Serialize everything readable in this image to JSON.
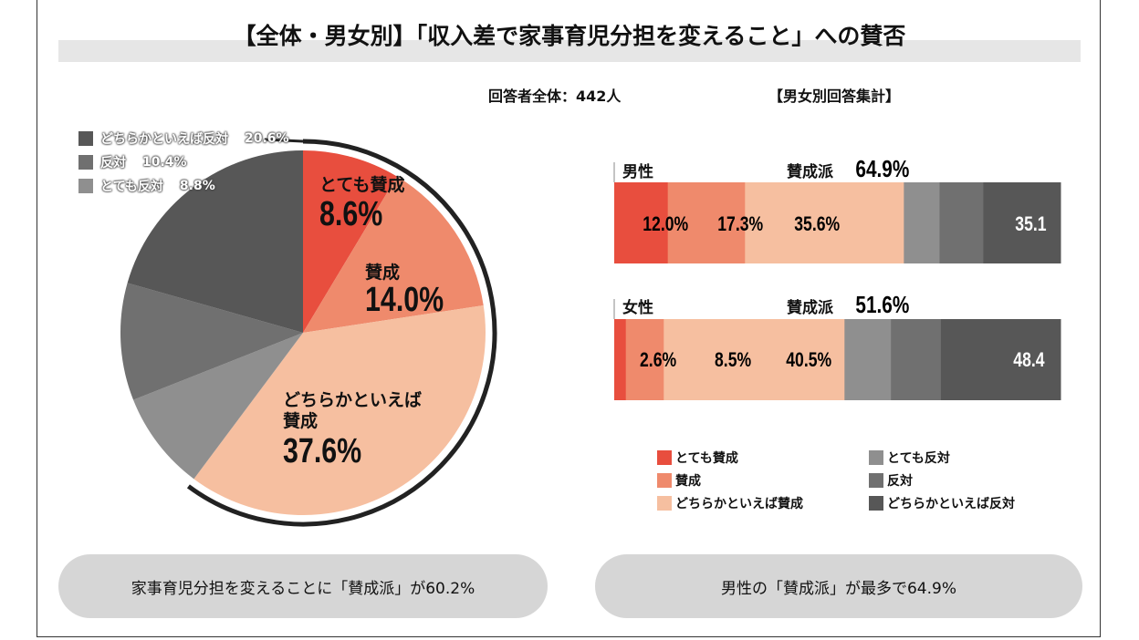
{
  "title": "【全体・男女別】「収入差で家事育児分担を変えること」への賛否",
  "respondents": "回答者全体：442人",
  "gender_heading": "【男女別回答集計】",
  "colors": {
    "very_agree": "#e84e3e",
    "agree": "#ef8a6c",
    "somewhat_agree": "#f6bfa0",
    "very_oppose": "#8f8f8f",
    "oppose": "#707070",
    "somewhat_oppose": "#575757"
  },
  "chart_data": [
    {
      "type": "pie",
      "title": "",
      "categories": [
        "とても賛成",
        "賛成",
        "どちらかといえば賛成",
        "とても反対",
        "反対",
        "どちらかといえば反対"
      ],
      "values": [
        8.6,
        14.0,
        37.6,
        8.8,
        10.4,
        20.6
      ],
      "labels": {
        "very_agree": "とても賛成",
        "very_agree_val": "8.6%",
        "agree": "賛成",
        "agree_val": "14.0%",
        "somewhat_agree_1": "どちらかといえば",
        "somewhat_agree_2": "賛成",
        "somewhat_agree_val": "37.6%"
      },
      "legend": [
        {
          "label": "どちらかといえば反対",
          "value": "20.6%"
        },
        {
          "label": "反対",
          "value": "10.4%"
        },
        {
          "label": "とても反対",
          "value": "8.8%"
        }
      ]
    },
    {
      "type": "bar",
      "orientation": "horizontal",
      "stacked": true,
      "categories": [
        "男性",
        "女性"
      ],
      "series": [
        {
          "name": "とても賛成",
          "values": [
            12.0,
            2.6
          ]
        },
        {
          "name": "賛成",
          "values": [
            17.3,
            8.5
          ]
        },
        {
          "name": "どちらかといえば賛成",
          "values": [
            35.6,
            40.5
          ]
        },
        {
          "name": "とても反対",
          "values": [
            8.0,
            10.4
          ]
        },
        {
          "name": "反対",
          "values": [
            9.8,
            11.2
          ]
        },
        {
          "name": "どちらかといえば反対",
          "values": [
            17.3,
            26.8
          ]
        }
      ],
      "rows": [
        {
          "label": "男性",
          "agree_label": "賛成派",
          "agree_total": "64.9%",
          "labels": [
            "12.0%",
            "17.3%",
            "35.6%"
          ],
          "oppose_total": "35.1"
        },
        {
          "label": "女性",
          "agree_label": "賛成派",
          "agree_total": "51.6%",
          "labels": [
            "2.6%",
            "8.5%",
            "40.5%"
          ],
          "oppose_total": "48.4"
        }
      ],
      "legend": [
        "とても賛成",
        "賛成",
        "どちらかといえば賛成",
        "とても反対",
        "反対",
        "どちらかといえば反対"
      ]
    }
  ],
  "summary_left": "家事育児分担を変えることに「賛成派」が60.2%",
  "summary_right": "男性の「賛成派」が最多で64.9%"
}
